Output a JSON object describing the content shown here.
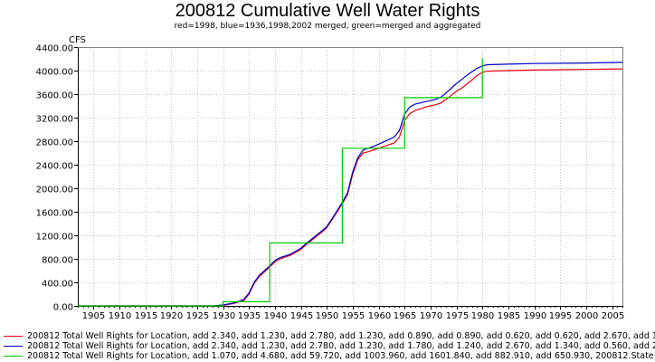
{
  "chart_data": {
    "type": "line",
    "title": "200812 Cumulative Well Water Rights",
    "subtitle": "red=1998, blue=1936,1998,2002 merged, green=merged and aggregated",
    "ylabel": "CFS",
    "xlabel": "",
    "xlim": [
      1902,
      2007
    ],
    "ylim": [
      0,
      4400
    ],
    "x_ticks": [
      "1905",
      "1910",
      "1915",
      "1920",
      "1925",
      "1930",
      "1935",
      "1940",
      "1945",
      "1950",
      "1955",
      "1960",
      "1965",
      "1970",
      "1975",
      "1980",
      "1985",
      "1990",
      "1995",
      "2000",
      "2005"
    ],
    "y_ticks": [
      "0.00",
      "400.00",
      "800.00",
      "1200.00",
      "1600.00",
      "2000.00",
      "2400.00",
      "2800.00",
      "3200.00",
      "3600.00",
      "4000.00",
      "4400.00"
    ],
    "grid": true,
    "series": [
      {
        "name": "200812 Total Well Rights for Location, add 2.340, add 1.230, add 2.780, add 1.230, add 0.890, add 0.890, add 0.620, add 0.620, add 2.670, add 1",
        "color": "#e8000b",
        "step": false,
        "x": [
          1902,
          1928,
          1930,
          1932,
          1934,
          1935,
          1936,
          1937,
          1938,
          1939,
          1940,
          1941,
          1942,
          1943,
          1944,
          1945,
          1946,
          1947,
          1948,
          1949,
          1950,
          1951,
          1952,
          1953,
          1954,
          1955,
          1956,
          1957,
          1958,
          1959,
          1960,
          1961,
          1962,
          1963,
          1964,
          1965,
          1966,
          1967,
          1968,
          1969,
          1970,
          1971,
          1972,
          1973,
          1974,
          1975,
          1976,
          1977,
          1978,
          1979,
          1980,
          1981,
          1985,
          1990,
          2000,
          2007
        ],
        "y": [
          0,
          0,
          10,
          40,
          90,
          200,
          380,
          500,
          580,
          660,
          750,
          800,
          830,
          860,
          910,
          960,
          1040,
          1110,
          1180,
          1250,
          1330,
          1460,
          1600,
          1740,
          1890,
          2240,
          2490,
          2600,
          2620,
          2650,
          2680,
          2710,
          2740,
          2770,
          2870,
          3150,
          3270,
          3320,
          3350,
          3380,
          3400,
          3420,
          3450,
          3510,
          3580,
          3650,
          3700,
          3770,
          3840,
          3920,
          3970,
          3990,
          4000,
          4010,
          4020,
          4030
        ]
      },
      {
        "name": "200812 Total Well Rights for Location, add 2.340, add 1.230, add 2.780, add 1.230, add 1.780, add 1.240, add 2.670, add 1.340, add 0.560, add 2",
        "color": "#0000cc",
        "step": false,
        "x": [
          1902,
          1928,
          1930,
          1932,
          1934,
          1935,
          1936,
          1937,
          1938,
          1939,
          1940,
          1941,
          1942,
          1943,
          1944,
          1945,
          1946,
          1947,
          1948,
          1949,
          1950,
          1951,
          1952,
          1953,
          1954,
          1955,
          1956,
          1957,
          1958,
          1959,
          1960,
          1961,
          1962,
          1963,
          1964,
          1965,
          1966,
          1967,
          1968,
          1969,
          1970,
          1971,
          1972,
          1973,
          1974,
          1975,
          1976,
          1977,
          1978,
          1979,
          1980,
          1981,
          1985,
          1990,
          2000,
          2007
        ],
        "y": [
          0,
          0,
          15,
          50,
          110,
          220,
          400,
          520,
          600,
          680,
          770,
          820,
          850,
          880,
          930,
          980,
          1060,
          1130,
          1200,
          1270,
          1350,
          1480,
          1620,
          1760,
          1920,
          2280,
          2520,
          2650,
          2680,
          2710,
          2750,
          2790,
          2830,
          2870,
          2980,
          3260,
          3380,
          3430,
          3450,
          3470,
          3490,
          3510,
          3550,
          3620,
          3700,
          3780,
          3850,
          3920,
          3980,
          4040,
          4080,
          4100,
          4110,
          4120,
          4130,
          4140
        ]
      },
      {
        "name": "200812 Total Well Rights for Location, add 1.070, add 4.680, add 59.720, add 1003.960, add 1601.840, add 882.910, add 650.930, 200812.State",
        "color": "#00cc00",
        "step": true,
        "x": [
          1902,
          1930,
          1939,
          1953,
          1965,
          1980,
          1980.01
        ],
        "y": [
          0,
          70,
          1070,
          2680,
          3540,
          4210,
          4210
        ]
      }
    ]
  }
}
